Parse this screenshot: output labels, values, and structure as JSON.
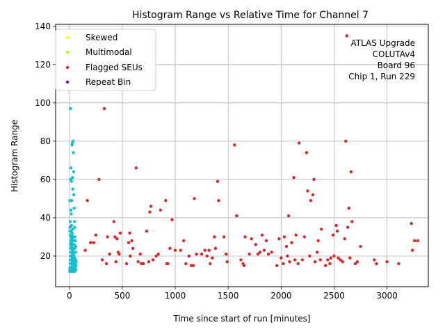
{
  "chart_data": {
    "type": "scatter",
    "title": "Histogram Range vs Relative Time for Channel 7",
    "xlabel": "Time since start of run [minutes]",
    "ylabel": "Histogram Range",
    "xlim": [
      -130,
      3390
    ],
    "ylim": [
      4,
      141
    ],
    "x_ticks": [
      0,
      500,
      1000,
      1500,
      2000,
      2500,
      3000
    ],
    "y_ticks": [
      20,
      40,
      60,
      80,
      100,
      120,
      140
    ],
    "grid": true,
    "legend_position": "top-left",
    "annotation": [
      "ATLAS Upgrade",
      "COLUTAv4",
      "Board 96",
      "Chip 1, Run 229"
    ],
    "series": [
      {
        "name": "Skewed",
        "color": "#ffff00",
        "points": []
      },
      {
        "name": "Multimodal",
        "color": "#aaff00",
        "points": []
      },
      {
        "name": "Flagged SEUs",
        "color": "#d62728",
        "points": [
          [
            150,
            23
          ],
          [
            170,
            49
          ],
          [
            200,
            27
          ],
          [
            230,
            27
          ],
          [
            250,
            31
          ],
          [
            280,
            60
          ],
          [
            310,
            18
          ],
          [
            330,
            97
          ],
          [
            350,
            16
          ],
          [
            360,
            30
          ],
          [
            380,
            21
          ],
          [
            420,
            38
          ],
          [
            430,
            30
          ],
          [
            440,
            17
          ],
          [
            450,
            29
          ],
          [
            460,
            22
          ],
          [
            470,
            21
          ],
          [
            480,
            32
          ],
          [
            540,
            16
          ],
          [
            560,
            27
          ],
          [
            570,
            32
          ],
          [
            575,
            20
          ],
          [
            590,
            28
          ],
          [
            600,
            24
          ],
          [
            630,
            66
          ],
          [
            650,
            17
          ],
          [
            670,
            21
          ],
          [
            680,
            16
          ],
          [
            700,
            16
          ],
          [
            730,
            33
          ],
          [
            750,
            17
          ],
          [
            760,
            43
          ],
          [
            770,
            46
          ],
          [
            790,
            18
          ],
          [
            820,
            20
          ],
          [
            840,
            21
          ],
          [
            860,
            44
          ],
          [
            910,
            49
          ],
          [
            920,
            16
          ],
          [
            930,
            16
          ],
          [
            950,
            24
          ],
          [
            970,
            39
          ],
          [
            1000,
            23
          ],
          [
            1050,
            23
          ],
          [
            1080,
            28
          ],
          [
            1100,
            16
          ],
          [
            1130,
            20
          ],
          [
            1150,
            15
          ],
          [
            1170,
            15
          ],
          [
            1180,
            50
          ],
          [
            1200,
            21
          ],
          [
            1250,
            21
          ],
          [
            1280,
            23
          ],
          [
            1300,
            20
          ],
          [
            1320,
            23
          ],
          [
            1330,
            16
          ],
          [
            1350,
            19
          ],
          [
            1370,
            30
          ],
          [
            1380,
            24
          ],
          [
            1400,
            59
          ],
          [
            1410,
            49
          ],
          [
            1460,
            30
          ],
          [
            1480,
            21
          ],
          [
            1490,
            17
          ],
          [
            1560,
            78
          ],
          [
            1580,
            41
          ],
          [
            1620,
            18
          ],
          [
            1640,
            16
          ],
          [
            1650,
            15
          ],
          [
            1660,
            30
          ],
          [
            1700,
            21
          ],
          [
            1720,
            29
          ],
          [
            1760,
            26
          ],
          [
            1780,
            21
          ],
          [
            1800,
            22
          ],
          [
            1820,
            31
          ],
          [
            1840,
            23
          ],
          [
            1860,
            28
          ],
          [
            1880,
            21
          ],
          [
            1910,
            22
          ],
          [
            1960,
            15
          ],
          [
            1980,
            29
          ],
          [
            2000,
            19
          ],
          [
            2020,
            16
          ],
          [
            2030,
            30
          ],
          [
            2050,
            25
          ],
          [
            2060,
            20
          ],
          [
            2070,
            41
          ],
          [
            2080,
            17
          ],
          [
            2100,
            27
          ],
          [
            2120,
            61
          ],
          [
            2130,
            18
          ],
          [
            2140,
            31
          ],
          [
            2160,
            16
          ],
          [
            2170,
            79
          ],
          [
            2200,
            18
          ],
          [
            2220,
            30
          ],
          [
            2240,
            74
          ],
          [
            2250,
            54
          ],
          [
            2270,
            20
          ],
          [
            2280,
            49
          ],
          [
            2300,
            52
          ],
          [
            2310,
            60
          ],
          [
            2320,
            17
          ],
          [
            2340,
            22
          ],
          [
            2350,
            28
          ],
          [
            2370,
            18
          ],
          [
            2380,
            34
          ],
          [
            2420,
            15
          ],
          [
            2440,
            18
          ],
          [
            2460,
            16
          ],
          [
            2470,
            19
          ],
          [
            2490,
            31
          ],
          [
            2500,
            20
          ],
          [
            2520,
            36
          ],
          [
            2530,
            33
          ],
          [
            2540,
            19
          ],
          [
            2560,
            18
          ],
          [
            2580,
            17
          ],
          [
            2600,
            29
          ],
          [
            2610,
            80
          ],
          [
            2620,
            135
          ],
          [
            2630,
            35
          ],
          [
            2640,
            45
          ],
          [
            2650,
            19
          ],
          [
            2660,
            64
          ],
          [
            2670,
            38
          ],
          [
            2700,
            16
          ],
          [
            2720,
            17
          ],
          [
            2750,
            25
          ],
          [
            2880,
            18
          ],
          [
            2900,
            16
          ],
          [
            3000,
            17
          ],
          [
            3110,
            16
          ],
          [
            3230,
            37
          ],
          [
            3240,
            23
          ],
          [
            3260,
            28
          ],
          [
            3290,
            28
          ]
        ]
      },
      {
        "name": "Repeat Bin",
        "color": "#7a0099",
        "points": []
      },
      {
        "color": "#17becf",
        "points": [
          [
            5,
            49
          ],
          [
            8,
            38
          ],
          [
            10,
            97
          ],
          [
            12,
            60
          ],
          [
            14,
            44
          ],
          [
            15,
            66
          ],
          [
            18,
            42
          ],
          [
            20,
            59
          ],
          [
            22,
            49
          ],
          [
            25,
            78
          ],
          [
            28,
            79
          ],
          [
            30,
            61
          ],
          [
            32,
            55
          ],
          [
            35,
            80
          ],
          [
            38,
            74
          ],
          [
            40,
            64
          ],
          [
            42,
            52
          ],
          [
            45,
            45
          ],
          [
            48,
            38
          ],
          [
            50,
            35
          ],
          [
            52,
            30
          ],
          [
            55,
            28
          ],
          [
            58,
            25
          ],
          [
            60,
            22
          ],
          [
            3,
            12
          ],
          [
            5,
            13
          ],
          [
            6,
            14
          ],
          [
            7,
            16
          ],
          [
            8,
            18
          ],
          [
            9,
            20
          ],
          [
            10,
            22
          ],
          [
            11,
            24
          ],
          [
            12,
            26
          ],
          [
            13,
            28
          ],
          [
            14,
            30
          ],
          [
            15,
            12
          ],
          [
            16,
            14
          ],
          [
            17,
            16
          ],
          [
            18,
            18
          ],
          [
            19,
            20
          ],
          [
            20,
            22
          ],
          [
            21,
            25
          ],
          [
            22,
            27
          ],
          [
            23,
            29
          ],
          [
            24,
            31
          ],
          [
            25,
            12
          ],
          [
            26,
            14
          ],
          [
            27,
            15
          ],
          [
            28,
            17
          ],
          [
            29,
            19
          ],
          [
            30,
            21
          ],
          [
            31,
            23
          ],
          [
            32,
            26
          ],
          [
            33,
            12
          ],
          [
            34,
            13
          ],
          [
            35,
            15
          ],
          [
            36,
            17
          ],
          [
            37,
            19
          ],
          [
            38,
            21
          ],
          [
            39,
            24
          ],
          [
            40,
            12
          ],
          [
            41,
            14
          ],
          [
            42,
            16
          ],
          [
            43,
            18
          ],
          [
            44,
            20
          ],
          [
            45,
            22
          ],
          [
            46,
            12
          ],
          [
            47,
            13
          ],
          [
            48,
            15
          ],
          [
            49,
            17
          ],
          [
            50,
            19
          ],
          [
            52,
            12
          ],
          [
            54,
            14
          ],
          [
            56,
            16
          ],
          [
            58,
            18
          ],
          [
            60,
            13
          ],
          [
            62,
            15
          ],
          [
            64,
            17
          ],
          [
            4,
            33
          ],
          [
            6,
            35
          ],
          [
            9,
            31
          ],
          [
            13,
            27
          ],
          [
            17,
            33
          ],
          [
            21,
            36
          ],
          [
            26,
            32
          ],
          [
            31,
            34
          ],
          [
            36,
            28
          ],
          [
            41,
            30
          ],
          [
            46,
            26
          ],
          [
            51,
            24
          ]
        ]
      }
    ]
  }
}
